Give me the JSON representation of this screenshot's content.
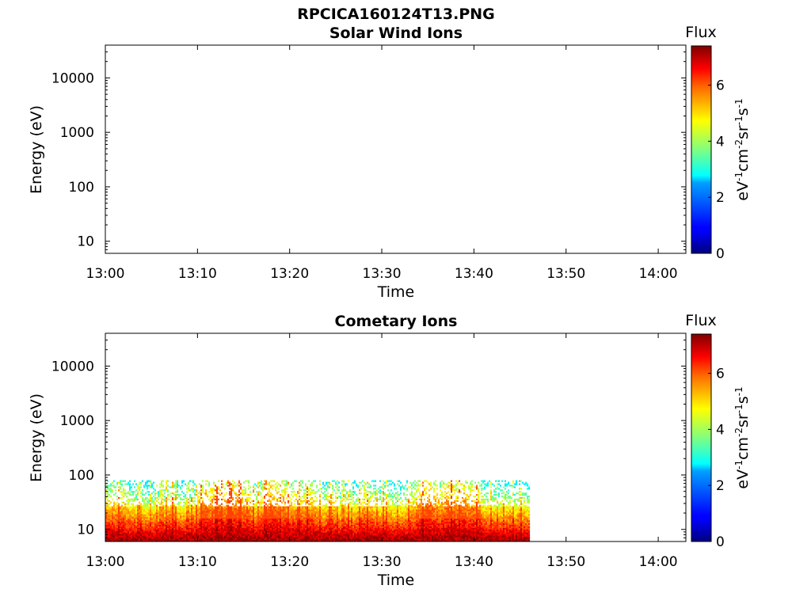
{
  "figure_title": "RPCICA160124T13.PNG",
  "chart_data": [
    {
      "type": "heatmap",
      "title": "Solar Wind Ions",
      "xlabel": "Time",
      "ylabel": "Energy (eV)",
      "x_ticks": [
        "13:00",
        "13:10",
        "13:20",
        "13:30",
        "13:40",
        "13:50",
        "14:00"
      ],
      "x_range": [
        "13:00",
        "14:03"
      ],
      "y_scale": "log",
      "y_ticks": [
        10,
        100,
        1000,
        10000
      ],
      "y_tick_labels": [
        "10",
        "100",
        "1000",
        "10000"
      ],
      "y_range": [
        6,
        40000
      ],
      "colorbar": {
        "title": "Flux",
        "label": "eV-1cm-2sr-1s-1",
        "ticks": [
          0,
          2,
          4,
          6
        ],
        "tick_labels": [
          "0",
          "2",
          "4",
          "6"
        ],
        "range": [
          0,
          7.4
        ],
        "colormap": "jet"
      },
      "data_present": false,
      "data_extent": null
    },
    {
      "type": "heatmap",
      "title": "Cometary Ions",
      "xlabel": "Time",
      "ylabel": "Energy (eV)",
      "x_ticks": [
        "13:00",
        "13:10",
        "13:20",
        "13:30",
        "13:40",
        "13:50",
        "14:00"
      ],
      "x_range": [
        "13:00",
        "14:03"
      ],
      "y_scale": "log",
      "y_ticks": [
        10,
        100,
        1000,
        10000
      ],
      "y_tick_labels": [
        "10",
        "100",
        "1000",
        "10000"
      ],
      "y_range": [
        6,
        40000
      ],
      "colorbar": {
        "title": "Flux",
        "label": "eV-1cm-2sr-1s-1",
        "ticks": [
          0,
          2,
          4,
          6
        ],
        "tick_labels": [
          "0",
          "2",
          "4",
          "6"
        ],
        "range": [
          0,
          7.4
        ],
        "colormap": "jet"
      },
      "data_present": true,
      "data_extent": {
        "time_start": "13:00",
        "time_end": "13:46",
        "energy_min": 6,
        "energy_max": 80
      }
    }
  ]
}
